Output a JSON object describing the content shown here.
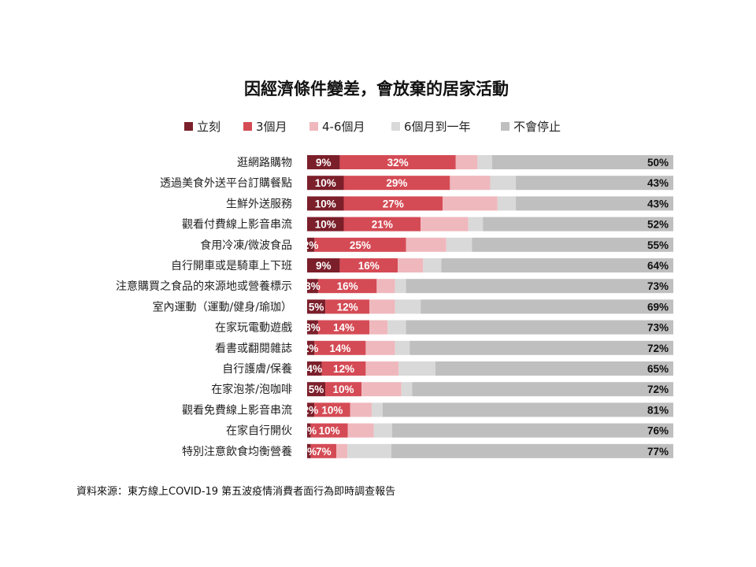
{
  "colors": {
    "immediately": "#7b1f2a",
    "three_months": "#d44b55",
    "four_six_months": "#efb8bd",
    "six_months_year": "#d9d9d9",
    "never": "#bfbfbf"
  },
  "chart_data": {
    "type": "bar",
    "orientation": "horizontal",
    "stacked": "percent",
    "title": "因經濟條件變差，會放棄的居家活動",
    "legend_position": "top",
    "categories": [
      "逛網路購物",
      "透過美食外送平台訂購餐點",
      "生鮮外送服務",
      "觀看付費線上影音串流",
      "食用冷凍/微波食品",
      "自行開車或是騎車上下班",
      "注意購買之食品的來源地或營養標示",
      "室內運動（運動/健身/瑜珈）",
      "在家玩電動遊戲",
      "看書或翻閱雜誌",
      "自行護膚/保養",
      "在家泡茶/泡咖啡",
      "觀看免費線上影音串流",
      "在家自行開伙",
      "特別注意飲食均衡營養"
    ],
    "series": [
      {
        "name": "立刻",
        "color_key": "immediately",
        "values": [
          9,
          10,
          10,
          10,
          2,
          9,
          3,
          5,
          3,
          2,
          4,
          5,
          2,
          1,
          1
        ]
      },
      {
        "name": "3個月",
        "color_key": "three_months",
        "values": [
          32,
          29,
          27,
          21,
          25,
          16,
          16,
          12,
          14,
          14,
          12,
          10,
          10,
          10,
          7
        ]
      },
      {
        "name": "4-6個月",
        "color_key": "four_six_months",
        "values": [
          6,
          11,
          15,
          13,
          11,
          7,
          5,
          7,
          5,
          8,
          9,
          11,
          6,
          7,
          3
        ]
      },
      {
        "name": "6個月到一年",
        "color_key": "six_months_year",
        "values": [
          4,
          7,
          5,
          4,
          7,
          5,
          3,
          7,
          5,
          4,
          10,
          3,
          3,
          5,
          12
        ]
      },
      {
        "name": "不會停止",
        "color_key": "never",
        "values": [
          50,
          43,
          43,
          52,
          55,
          64,
          73,
          69,
          73,
          72,
          65,
          72,
          81,
          76,
          77
        ]
      }
    ],
    "labeled_series": [
      0,
      1,
      4
    ],
    "xlim": [
      0,
      100
    ],
    "grid": false
  },
  "source": "資料來源：東方線上COVID-19 第五波疫情消費者面行為即時調查報告"
}
